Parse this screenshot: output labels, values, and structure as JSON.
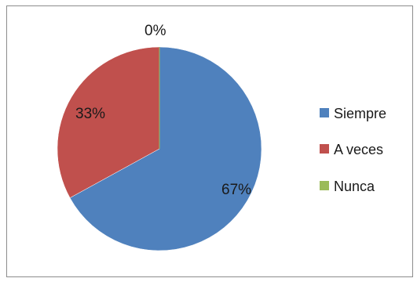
{
  "chart_data": {
    "type": "pie",
    "categories": [
      "Siempre",
      "A veces",
      "Nunca"
    ],
    "values": [
      67,
      33,
      0
    ],
    "data_labels": [
      "67%",
      "33%",
      "0%"
    ],
    "colors": [
      "#4f81bd",
      "#c0504d",
      "#9bbb59"
    ],
    "legend_position": "right"
  }
}
